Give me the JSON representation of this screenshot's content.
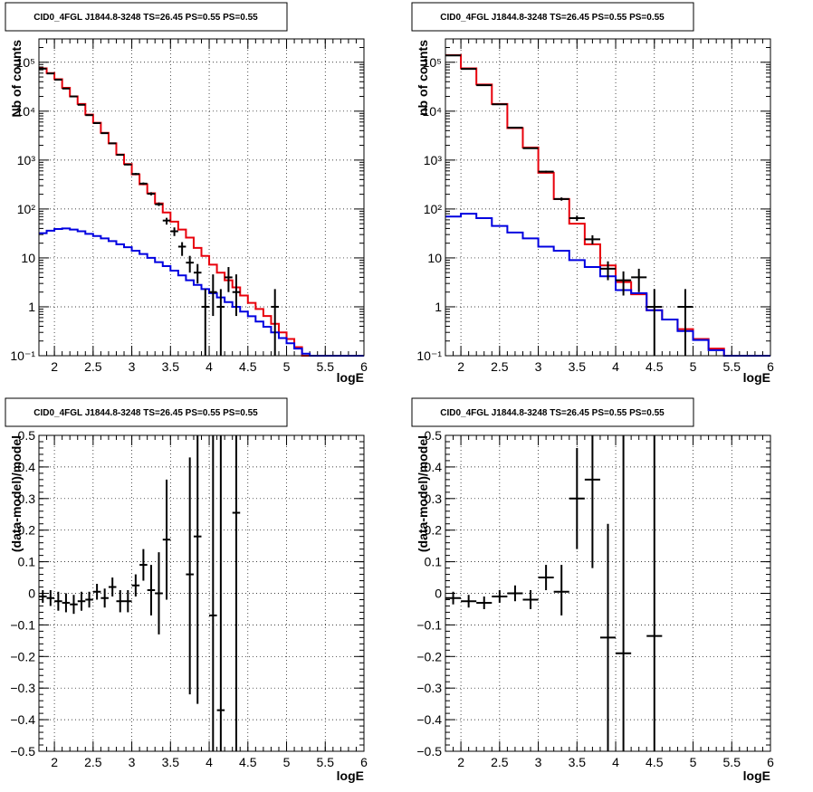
{
  "colors": {
    "data": "#000000",
    "model": "#e8000b",
    "background": "#0000e0",
    "grid": "#000000"
  },
  "chart_data": [
    {
      "type": "line",
      "title": "CID0_4FGL J1844.8-3248 TS=26.45 PS=0.55 PS=0.55",
      "xlabel": "logE",
      "ylabel": "Nb of counts",
      "xlim": [
        1.8,
        6.0
      ],
      "ylim": [
        0.1,
        300000
      ],
      "y_scale": "log",
      "grid": true,
      "xticks": [
        2,
        2.5,
        3,
        3.5,
        4,
        4.5,
        5,
        5.5,
        6
      ],
      "xtick_labels": [
        "2",
        "2.5",
        "3",
        "3.5",
        "4",
        "4.5",
        "5",
        "5.5",
        "6"
      ],
      "yticks": [
        0.1,
        1,
        10,
        100,
        1000,
        10000,
        100000
      ],
      "ytick_labels": [
        "10⁻¹",
        "1",
        "10",
        "10²",
        "10³",
        "10⁴",
        "10⁵"
      ],
      "bin_edges": [
        1.8,
        1.9,
        2.0,
        2.1,
        2.2,
        2.3,
        2.4,
        2.5,
        2.6,
        2.7,
        2.8,
        2.9,
        3.0,
        3.1,
        3.2,
        3.3,
        3.4,
        3.5,
        3.6,
        3.7,
        3.8,
        3.9,
        4.0,
        4.1,
        4.2,
        4.3,
        4.4,
        4.5,
        4.6,
        4.7,
        4.8,
        4.9,
        5.0,
        5.1,
        5.2,
        5.3,
        5.4,
        5.5,
        5.6,
        5.7,
        5.8,
        5.9,
        6.0
      ],
      "series": [
        {
          "kind": "step",
          "color": "#e8000b",
          "values": [
            75000,
            60000,
            45000,
            30000,
            20000,
            14000,
            8500,
            5800,
            3600,
            2200,
            1300,
            830,
            510,
            320,
            210,
            130,
            85,
            55,
            38,
            26,
            16,
            11,
            7.3,
            5.0,
            3.5,
            2.5,
            1.7,
            1.2,
            0.9,
            0.65,
            0.45,
            0.3,
            0.22,
            0.15,
            0.1,
            0.1,
            0.1,
            0.1,
            0.1,
            0.1,
            0.1,
            0.1
          ]
        },
        {
          "kind": "step",
          "color": "#0000e0",
          "values": [
            32,
            36,
            39,
            40,
            38,
            35,
            31,
            28,
            25,
            22,
            19,
            16.5,
            14,
            12,
            10,
            8.2,
            6.8,
            5.5,
            4.4,
            3.5,
            2.8,
            2.3,
            1.9,
            1.55,
            1.25,
            1.0,
            0.8,
            0.64,
            0.5,
            0.39,
            0.3,
            0.23,
            0.18,
            0.14,
            0.11,
            0.1,
            0.1,
            0.1,
            0.1,
            0.1,
            0.1,
            0.1
          ]
        },
        {
          "kind": "points",
          "color": "#000000",
          "x": [
            1.85,
            1.95,
            2.05,
            2.15,
            2.25,
            2.35,
            2.45,
            2.55,
            2.65,
            2.75,
            2.85,
            2.95,
            3.05,
            3.15,
            3.25,
            3.35,
            3.45,
            3.55,
            3.65,
            3.75,
            3.85,
            3.95,
            4.05,
            4.15,
            4.25,
            4.35,
            4.85
          ],
          "xerr": 0.05,
          "y": [
            74000,
            59000,
            44000,
            29000,
            20000,
            13500,
            8300,
            5700,
            3550,
            2200,
            1280,
            810,
            520,
            330,
            205,
            125,
            58,
            35,
            17,
            8,
            5,
            1,
            2,
            1,
            4,
            2,
            1
          ],
          "ylow": [
            73000,
            58000,
            43500,
            28600,
            19700,
            13300,
            8100,
            5600,
            3450,
            2150,
            1240,
            780,
            495,
            312,
            190,
            115,
            48,
            28,
            11,
            5,
            3,
            0.1,
            0.65,
            0.1,
            2,
            0.65,
            0.1
          ],
          "yhigh": [
            75000,
            60000,
            44500,
            29400,
            20300,
            13700,
            8500,
            5850,
            3650,
            2250,
            1320,
            840,
            545,
            348,
            220,
            136,
            66,
            42,
            21,
            11,
            7.5,
            2.3,
            4.6,
            2.3,
            6.5,
            4.6,
            2.3
          ]
        }
      ]
    },
    {
      "type": "line",
      "title": "CID0_4FGL J1844.8-3248 TS=26.45 PS=0.55 PS=0.55",
      "xlabel": "logE",
      "ylabel": "nb of counts",
      "xlim": [
        1.8,
        6.0
      ],
      "ylim": [
        0.1,
        300000
      ],
      "y_scale": "log",
      "grid": true,
      "xticks": [
        2,
        2.5,
        3,
        3.5,
        4,
        4.5,
        5,
        5.5,
        6
      ],
      "xtick_labels": [
        "2",
        "2.5",
        "3",
        "3.5",
        "4",
        "4.5",
        "5",
        "5.5",
        "6"
      ],
      "yticks": [
        0.1,
        1,
        10,
        100,
        1000,
        10000,
        100000
      ],
      "ytick_labels": [
        "10⁻¹",
        "1",
        "10",
        "10²",
        "10³",
        "10⁴",
        "10⁵"
      ],
      "bin_edges": [
        1.8,
        2.0,
        2.2,
        2.4,
        2.6,
        2.8,
        3.0,
        3.2,
        3.4,
        3.6,
        3.8,
        4.0,
        4.2,
        4.4,
        4.6,
        4.8,
        5.0,
        5.2,
        5.4,
        5.6,
        5.8,
        6.0
      ],
      "series": [
        {
          "kind": "step",
          "color": "#e8000b",
          "values": [
            140000,
            75000,
            35000,
            14000,
            4500,
            1800,
            550,
            160,
            50,
            19,
            7,
            3.2,
            1.8,
            0.85,
            0.55,
            0.35,
            0.22,
            0.14,
            0.1,
            0.1,
            0.1
          ]
        },
        {
          "kind": "step",
          "color": "#0000e0",
          "values": [
            70,
            80,
            65,
            45,
            33,
            25,
            17,
            14,
            9,
            6.5,
            4.2,
            2.2,
            1.9,
            0.85,
            0.55,
            0.32,
            0.21,
            0.13,
            0.1,
            0.1,
            0.1
          ]
        },
        {
          "kind": "points",
          "color": "#000000",
          "x": [
            1.9,
            2.1,
            2.3,
            2.5,
            2.7,
            2.9,
            3.1,
            3.3,
            3.5,
            3.7,
            3.9,
            4.1,
            4.3,
            4.5,
            4.9
          ],
          "xerr": 0.1,
          "y": [
            138000,
            73000,
            34000,
            13800,
            4600,
            1750,
            580,
            160,
            65,
            24,
            6,
            3.5,
            4,
            1,
            1
          ],
          "ylow": [
            137000,
            72500,
            33700,
            13600,
            4500,
            1700,
            555,
            148,
            57,
            19,
            3.5,
            1.7,
            2,
            0.1,
            0.1
          ],
          "yhigh": [
            139000,
            73500,
            34300,
            14000,
            4700,
            1800,
            605,
            172,
            73,
            29,
            8.5,
            5.3,
            6,
            2.3,
            2.3
          ]
        }
      ]
    },
    {
      "type": "scatter",
      "title": "CID0_4FGL J1844.8-3248 TS=26.45 PS=0.55 PS=0.55",
      "xlabel": "logE",
      "ylabel": "(data-model)/model",
      "xlim": [
        1.8,
        6.0
      ],
      "ylim": [
        -0.5,
        0.5
      ],
      "grid": true,
      "xticks": [
        2,
        2.5,
        3,
        3.5,
        4,
        4.5,
        5,
        5.5,
        6
      ],
      "xtick_labels": [
        "2",
        "2.5",
        "3",
        "3.5",
        "4",
        "4.5",
        "5",
        "5.5",
        "6"
      ],
      "yticks": [
        -0.5,
        -0.4,
        -0.3,
        -0.2,
        -0.1,
        0,
        0.1,
        0.2,
        0.3,
        0.4,
        0.5
      ],
      "ytick_labels": [
        "−0.5",
        "−0.4",
        "−0.3",
        "−0.2",
        "−0.1",
        "0",
        "0.1",
        "0.2",
        "0.3",
        "0.4",
        "0.5"
      ],
      "series": [
        {
          "kind": "points",
          "color": "#000000",
          "x": [
            1.85,
            1.95,
            2.05,
            2.15,
            2.25,
            2.35,
            2.45,
            2.55,
            2.65,
            2.75,
            2.85,
            2.95,
            3.05,
            3.15,
            3.25,
            3.35,
            3.45,
            3.75,
            3.85,
            4.05,
            4.15,
            4.35
          ],
          "xerr": 0.05,
          "y": [
            -0.01,
            -0.015,
            -0.025,
            -0.03,
            -0.035,
            -0.025,
            -0.02,
            0.005,
            -0.015,
            0.02,
            -0.025,
            -0.025,
            0.025,
            0.09,
            0.01,
            0.0,
            0.17,
            0.06,
            0.18,
            -0.07,
            -0.37,
            0.255
          ],
          "ylow": [
            -0.03,
            -0.04,
            -0.055,
            -0.06,
            -0.065,
            -0.055,
            -0.045,
            -0.02,
            -0.045,
            -0.01,
            -0.06,
            -0.06,
            -0.01,
            0.04,
            -0.07,
            -0.13,
            -0.02,
            -0.32,
            -0.35,
            -0.5,
            -0.5,
            -0.5
          ],
          "yhigh": [
            0.01,
            0.01,
            0.005,
            0.0,
            -0.005,
            0.005,
            0.005,
            0.03,
            0.015,
            0.05,
            0.01,
            0.01,
            0.06,
            0.14,
            0.09,
            0.13,
            0.36,
            0.43,
            0.5,
            0.5,
            0.5,
            0.5
          ]
        }
      ]
    },
    {
      "type": "scatter",
      "title": "CID0_4FGL J1844.8-3248 TS=26.45 PS=0.55 PS=0.55",
      "xlabel": "logE",
      "ylabel": "(data-model)/model",
      "xlim": [
        1.8,
        6.0
      ],
      "ylim": [
        -0.5,
        0.5
      ],
      "grid": true,
      "xticks": [
        2,
        2.5,
        3,
        3.5,
        4,
        4.5,
        5,
        5.5,
        6
      ],
      "xtick_labels": [
        "2",
        "2.5",
        "3",
        "3.5",
        "4",
        "4.5",
        "5",
        "5.5",
        "6"
      ],
      "yticks": [
        -0.5,
        -0.4,
        -0.3,
        -0.2,
        -0.1,
        0,
        0.1,
        0.2,
        0.3,
        0.4,
        0.5
      ],
      "ytick_labels": [
        "−0.5",
        "−0.4",
        "−0.3",
        "−0.2",
        "−0.1",
        "0",
        "0.1",
        "0.2",
        "0.3",
        "0.4",
        "0.5"
      ],
      "series": [
        {
          "kind": "points",
          "color": "#000000",
          "x": [
            1.9,
            2.1,
            2.3,
            2.5,
            2.7,
            2.9,
            3.1,
            3.3,
            3.5,
            3.7,
            3.9,
            4.1,
            4.5
          ],
          "xerr": 0.1,
          "y": [
            -0.015,
            -0.025,
            -0.03,
            -0.01,
            0.0,
            -0.02,
            0.05,
            0.005,
            0.3,
            0.36,
            -0.14,
            -0.19,
            -0.135
          ],
          "ylow": [
            -0.035,
            -0.045,
            -0.05,
            -0.03,
            -0.025,
            -0.05,
            0.01,
            -0.07,
            0.14,
            0.08,
            -0.5,
            -0.5,
            -0.5
          ],
          "yhigh": [
            0.005,
            -0.005,
            -0.01,
            0.01,
            0.025,
            0.01,
            0.09,
            0.09,
            0.46,
            0.5,
            0.22,
            0.5,
            0.5
          ]
        }
      ]
    }
  ]
}
